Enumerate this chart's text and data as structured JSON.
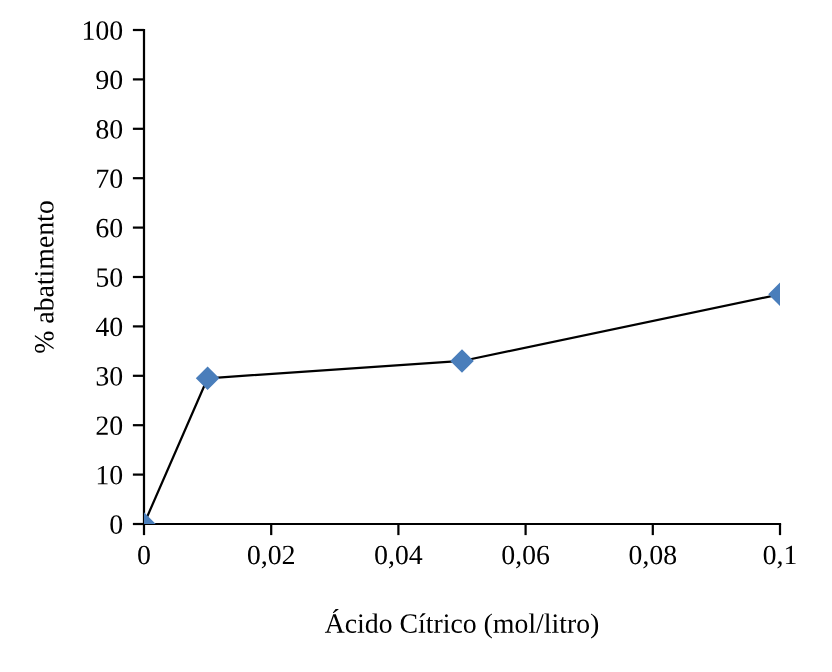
{
  "chart_data": {
    "type": "line",
    "xlabel": "Ácido Cítrico (mol/litro)",
    "ylabel": "% abatimento",
    "x": [
      0,
      0.01,
      0.05,
      0.1
    ],
    "series": [
      {
        "color": "#4a7ebb",
        "values": [
          0,
          29.5,
          33,
          46.5
        ]
      }
    ],
    "xlim": [
      0,
      0.1
    ],
    "xticks": [
      0,
      {
        "value": 0.02,
        "label": "0,02"
      },
      {
        "value": 0.04,
        "label": "0,04"
      },
      {
        "value": 0.06,
        "label": "0,06"
      },
      {
        "value": 0.08,
        "label": "0,08"
      },
      {
        "value": 0.1,
        "label": "0,1"
      }
    ],
    "ylim": [
      0,
      100
    ],
    "yticks": [
      0,
      10,
      20,
      30,
      40,
      50,
      60,
      70,
      80,
      90,
      100
    ],
    "marker": "diamond",
    "grid": false,
    "legend": false
  }
}
